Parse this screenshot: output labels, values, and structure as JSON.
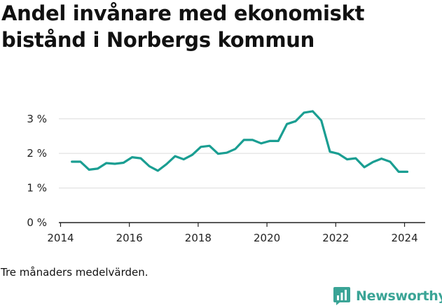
{
  "header": {
    "title": "Andel invånare med ekonomiskt bistånd i Norbergs kommun"
  },
  "footer": {
    "note": "Tre månaders medelvärden.",
    "brand": "Newsworthy",
    "brand_icon": "bar-chart-speech-bubble-icon"
  },
  "colors": {
    "line": "#1a9e92",
    "grid": "#dcdcdc",
    "axis": "#222222",
    "brand": "#3aa496"
  },
  "chart_data": {
    "type": "line",
    "title": "Andel invånare med ekonomiskt bistånd i Norbergs kommun",
    "xlabel": "",
    "ylabel": "",
    "x_ticks": [
      "2014",
      "2016",
      "2018",
      "2020",
      "2022",
      "2024"
    ],
    "x_tick_values": [
      2014,
      2016,
      2018,
      2020,
      2022,
      2024
    ],
    "y_ticks": [
      "0 %",
      "1 %",
      "2 %",
      "3 %"
    ],
    "y_tick_values": [
      0,
      1,
      2,
      3
    ],
    "xlim": [
      2013.95,
      2024.6
    ],
    "ylim": [
      0,
      3.4
    ],
    "grid": true,
    "legend": "none",
    "series": [
      {
        "x": [
          2014.33,
          2014.58,
          2014.83,
          2015.08,
          2015.33,
          2015.58,
          2015.83,
          2016.08,
          2016.33,
          2016.58,
          2016.83,
          2017.08,
          2017.33,
          2017.58,
          2017.83,
          2018.08,
          2018.33,
          2018.58,
          2018.83,
          2019.08,
          2019.33,
          2019.58,
          2019.83,
          2020.08,
          2020.33,
          2020.58,
          2020.83,
          2021.08,
          2021.33,
          2021.58,
          2021.83,
          2022.08,
          2022.33,
          2022.58,
          2022.83,
          2023.08,
          2023.33,
          2023.58,
          2023.83,
          2024.08
        ],
        "values": [
          1.76,
          1.76,
          1.53,
          1.56,
          1.72,
          1.7,
          1.73,
          1.89,
          1.86,
          1.63,
          1.5,
          1.69,
          1.92,
          1.83,
          1.96,
          2.19,
          2.22,
          1.99,
          2.02,
          2.13,
          2.39,
          2.39,
          2.29,
          2.36,
          2.36,
          2.85,
          2.93,
          3.18,
          3.22,
          2.95,
          2.05,
          1.99,
          1.83,
          1.86,
          1.6,
          1.75,
          1.85,
          1.76,
          1.47,
          1.47
        ]
      }
    ]
  }
}
